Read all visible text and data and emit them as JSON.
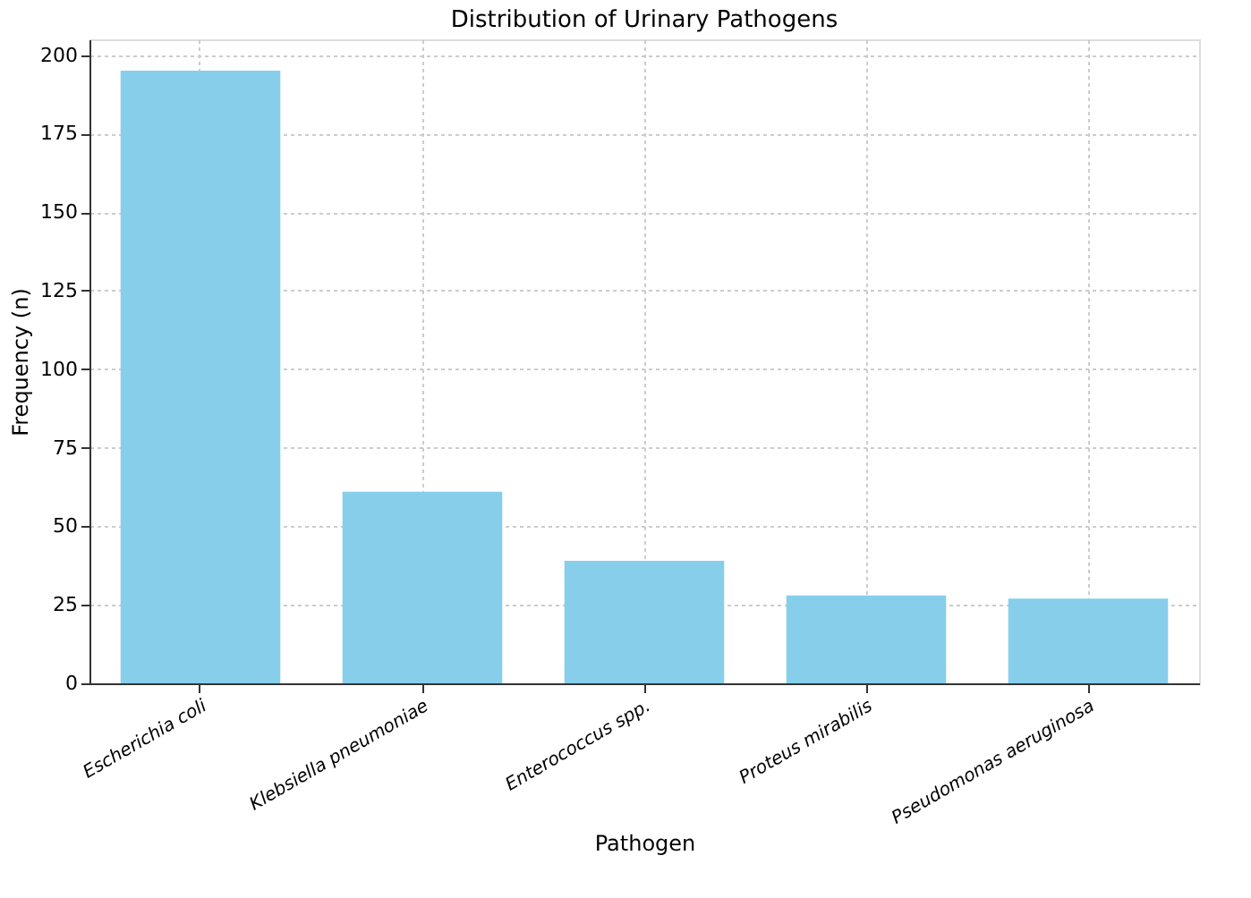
{
  "chart_data": {
    "type": "bar",
    "title": "Distribution of Urinary Pathogens",
    "xlabel": "Pathogen",
    "ylabel": "Frequency (n)",
    "categories": [
      "Escherichia coli",
      "Klebsiella pneumoniae",
      "Enterococcus spp.",
      "Proteus mirabilis",
      "Pseudomonas aeruginosa"
    ],
    "values": [
      195,
      61,
      39,
      28,
      27
    ],
    "color": "#87ceeb",
    "ylim": [
      0,
      205
    ],
    "yticks": [
      0,
      25,
      50,
      75,
      100,
      125,
      150,
      175,
      200
    ],
    "grid": true
  }
}
